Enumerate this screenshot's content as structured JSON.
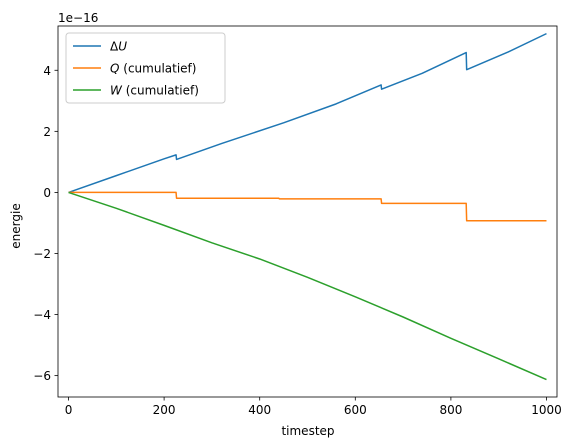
{
  "chart_data": {
    "type": "line",
    "xlabel": "timestep",
    "ylabel": "energie",
    "y_offset_text": "1e−16",
    "xlim": [
      -22,
      1022
    ],
    "ylim": [
      -6.7,
      5.45
    ],
    "x_ticks": [
      0,
      200,
      400,
      600,
      800,
      1000
    ],
    "x_tick_labels": [
      "0",
      "200",
      "400",
      "600",
      "800",
      "1000"
    ],
    "y_ticks": [
      -6,
      -4,
      -2,
      0,
      2,
      4
    ],
    "y_tick_labels": [
      "−6",
      "−4",
      "−2",
      "0",
      "2",
      "4"
    ],
    "legend_position": "upper-left",
    "series": [
      {
        "name_prefix": "Δ",
        "name_var": "U",
        "name_suffix": "",
        "color": "#1f77b4",
        "points": [
          [
            0,
            0
          ],
          [
            100,
            0.55
          ],
          [
            200,
            1.1
          ],
          [
            225,
            1.23
          ],
          [
            226,
            1.08
          ],
          [
            320,
            1.6
          ],
          [
            450,
            2.28
          ],
          [
            560,
            2.9
          ],
          [
            654,
            3.52
          ],
          [
            655,
            3.38
          ],
          [
            740,
            3.9
          ],
          [
            832,
            4.58
          ],
          [
            833,
            4.02
          ],
          [
            920,
            4.6
          ],
          [
            1000,
            5.2
          ]
        ]
      },
      {
        "name_prefix": "",
        "name_var": "Q",
        "name_suffix": " (cumulatief)",
        "color": "#ff7f0e",
        "points": [
          [
            0,
            0
          ],
          [
            225,
            0
          ],
          [
            226,
            -0.19
          ],
          [
            440,
            -0.19
          ],
          [
            441,
            -0.21
          ],
          [
            654,
            -0.21
          ],
          [
            655,
            -0.36
          ],
          [
            832,
            -0.36
          ],
          [
            833,
            -0.93
          ],
          [
            1000,
            -0.93
          ]
        ]
      },
      {
        "name_prefix": "",
        "name_var": "W",
        "name_suffix": " (cumulatief)",
        "color": "#2ca02c",
        "points": [
          [
            0,
            0
          ],
          [
            100,
            -0.52
          ],
          [
            200,
            -1.08
          ],
          [
            300,
            -1.65
          ],
          [
            400,
            -2.18
          ],
          [
            500,
            -2.78
          ],
          [
            600,
            -3.42
          ],
          [
            700,
            -4.08
          ],
          [
            800,
            -4.78
          ],
          [
            900,
            -5.45
          ],
          [
            1000,
            -6.13
          ]
        ]
      }
    ]
  }
}
